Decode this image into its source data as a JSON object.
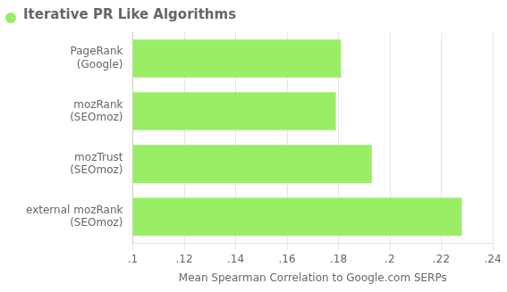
{
  "chart_data": {
    "type": "bar",
    "orientation": "horizontal",
    "title": "Iterative PR Like Algorithms",
    "categories": [
      "PageRank\n(Google)",
      "mozRank\n(SEOmoz)",
      "mozTrust\n(SEOmoz)",
      "external mozRank\n(SEOmoz)"
    ],
    "values": [
      0.181,
      0.179,
      0.193,
      0.228
    ],
    "color": "#99ee66",
    "xlabel": "Mean Spearman Correlation to Google.com SERPs",
    "xlim": [
      0.1,
      0.24
    ],
    "xticks": [
      {
        "value": 0.1,
        "label": ".1"
      },
      {
        "value": 0.12,
        "label": ".12"
      },
      {
        "value": 0.14,
        "label": ".14"
      },
      {
        "value": 0.16,
        "label": ".16"
      },
      {
        "value": 0.18,
        "label": ".18"
      },
      {
        "value": 0.2,
        "label": ".2"
      },
      {
        "value": 0.22,
        "label": ".22"
      },
      {
        "value": 0.24,
        "label": ".24"
      }
    ],
    "grid": true
  }
}
